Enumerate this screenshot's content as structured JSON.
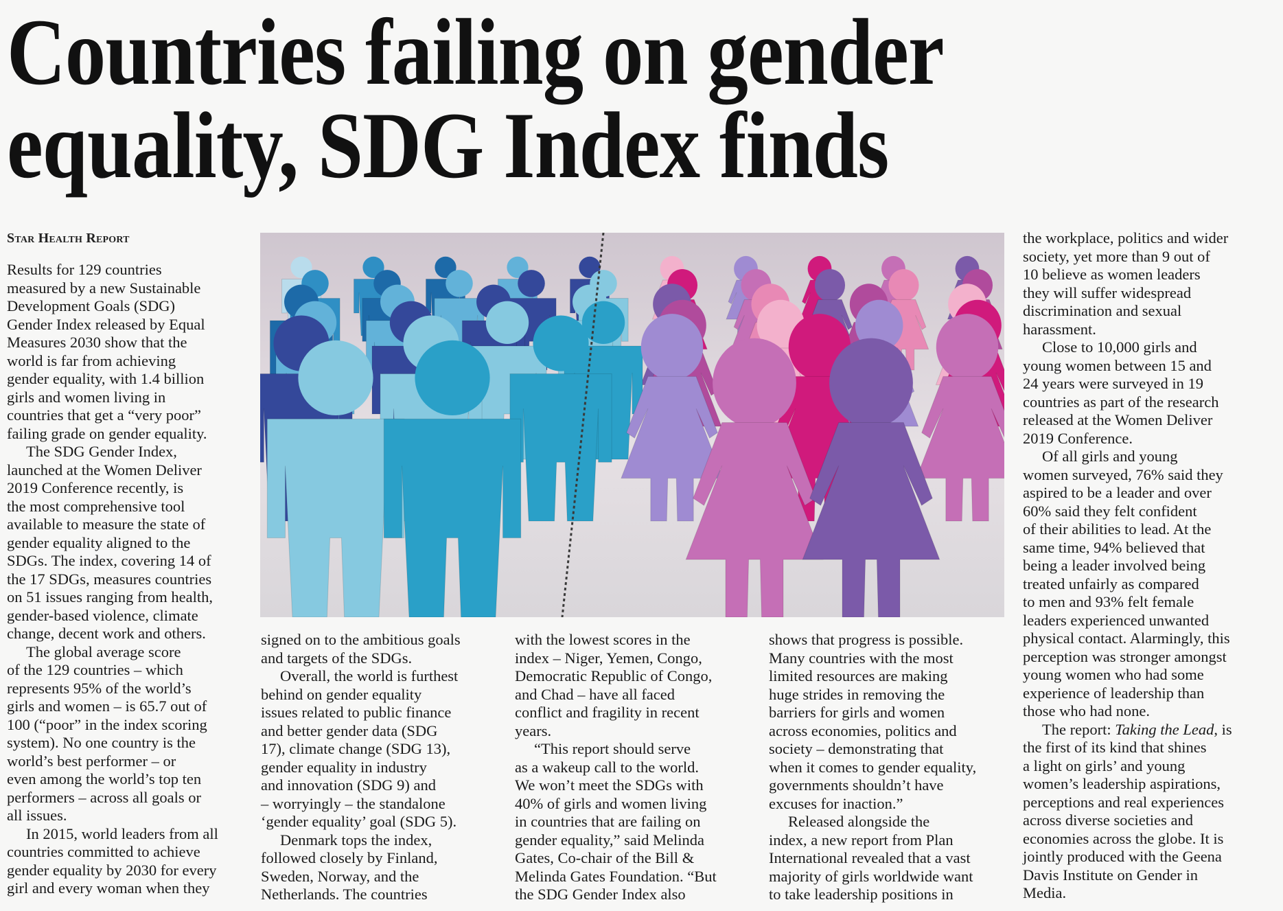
{
  "headline": [
    "Countries failing on gender",
    "equality, SDG Index finds"
  ],
  "byline": "Star Health Report",
  "photo": {
    "description_icon": "paper-cutout-people-image",
    "left_colors": [
      "#b9dcec",
      "#2f8fc4",
      "#1d6aa8",
      "#62b2d9",
      "#34489a",
      "#86c9e0",
      "#2aa0c8"
    ],
    "right_colors": [
      "#f3b1cc",
      "#9f8bd2",
      "#d01a7c",
      "#c56fb6",
      "#7b5aa9",
      "#e889b5",
      "#b04b9c"
    ]
  },
  "columns": [
    {
      "paragraphs": [
        {
          "indent": false,
          "lines": [
            "Results for 129 countries",
            "measured by a new Sustainable",
            "Development Goals (SDG)",
            "Gender Index released by Equal",
            "Measures 2030 show that the",
            "world is far from achieving",
            "gender equality, with 1.4 billion",
            "girls and women living in",
            "countries that get a “very poor”",
            "failing grade on gender equality."
          ]
        },
        {
          "indent": true,
          "lines": [
            "The SDG Gender Index,",
            "launched at the Women Deliver",
            "2019 Conference recently, is",
            "the most comprehensive tool",
            "available to measure the state of",
            "gender equality aligned to the",
            "SDGs. The index, covering 14 of",
            "the 17 SDGs, measures countries",
            "on 51 issues ranging from health,",
            "gender-based violence, climate",
            "change, decent work and others."
          ]
        },
        {
          "indent": true,
          "lines": [
            "The global average score",
            "of the 129 countries – which",
            "represents 95% of the world’s",
            "girls and women – is 65.7 out of",
            "100 (“poor” in the index scoring",
            "system). No one country is the",
            "world’s best performer – or",
            "even among the world’s top ten",
            "performers – across all goals or",
            "all issues."
          ]
        },
        {
          "indent": true,
          "lines": [
            "In 2015, world leaders from all",
            "countries committed to achieve",
            "gender equality by 2030 for every",
            "girl and every woman when they"
          ]
        }
      ]
    },
    {
      "paragraphs": [
        {
          "indent": false,
          "lines": [
            "signed on to the ambitious goals",
            "and targets of the SDGs."
          ]
        },
        {
          "indent": true,
          "lines": [
            "Overall, the world is furthest",
            "behind on gender equality",
            "issues related to public finance",
            "and better gender data (SDG",
            "17), climate change (SDG 13),",
            "gender equality in industry",
            "and innovation (SDG 9) and",
            "– worryingly – the standalone",
            "‘gender equality’ goal (SDG 5)."
          ]
        },
        {
          "indent": true,
          "lines": [
            "Denmark tops the index,",
            "followed closely by Finland,",
            "Sweden, Norway, and the",
            "Netherlands. The countries"
          ]
        }
      ]
    },
    {
      "paragraphs": [
        {
          "indent": false,
          "lines": [
            "with the lowest scores in the",
            "index – Niger, Yemen, Congo,",
            "Democratic Republic of Congo,",
            "and Chad – have all faced",
            "conflict and fragility in recent",
            "years."
          ]
        },
        {
          "indent": true,
          "lines": [
            "“This report should serve",
            "as a wakeup call to the world.",
            "We won’t meet the SDGs with",
            "40% of girls and women living",
            "in countries that are failing on",
            "gender equality,” said Melinda",
            "Gates, Co-chair of the Bill &",
            "Melinda Gates Foundation. “But",
            "the SDG Gender Index also"
          ]
        }
      ]
    },
    {
      "paragraphs": [
        {
          "indent": false,
          "lines": [
            "shows that progress is possible.",
            "Many countries with the most",
            "limited resources are making",
            "huge strides in removing the",
            "barriers for girls and women",
            "across economies, politics and",
            "society – demonstrating that",
            "when it comes to gender equality,",
            "governments shouldn’t have",
            "excuses for inaction.”"
          ]
        },
        {
          "indent": true,
          "lines": [
            "Released alongside the",
            "index, a new report from Plan",
            "International revealed that a vast",
            "majority of girls worldwide want",
            "to take leadership positions in"
          ]
        }
      ]
    },
    {
      "paragraphs": [
        {
          "indent": false,
          "lines": [
            "the workplace, politics and wider",
            "society, yet more than 9 out of",
            "10 believe as women leaders",
            "they will suffer widespread",
            "discrimination and sexual",
            "harassment."
          ]
        },
        {
          "indent": true,
          "lines": [
            "Close to 10,000 girls and",
            "young women between 15 and",
            "24 years were surveyed in 19",
            "countries as part of the research",
            "released at the Women Deliver",
            "2019 Conference."
          ]
        },
        {
          "indent": true,
          "lines": [
            "Of all girls and young",
            "women surveyed, 76% said they",
            "aspired to be a leader and over",
            "60% said they felt confident",
            "of their abilities to lead. At the",
            "same time, 94% believed that",
            "being a leader involved being",
            "treated unfairly as compared",
            "to men and 93% felt female",
            "leaders experienced unwanted",
            "physical contact. Alarmingly, this",
            "perception was stronger amongst",
            "young women who had some",
            "experience of leadership than",
            "those who had none."
          ]
        },
        {
          "indent": true,
          "lines": [
            {
              "pre": "The report: ",
              "em": "Taking the Lead",
              "post": ", is"
            },
            "the first of its kind that shines",
            "a light on girls’ and young",
            "women’s leadership aspirations,",
            "perceptions and real experiences",
            "across diverse societies and",
            "economies across the globe. It is",
            "jointly produced with the Geena",
            "Davis Institute on Gender in",
            "Media."
          ]
        }
      ]
    }
  ]
}
